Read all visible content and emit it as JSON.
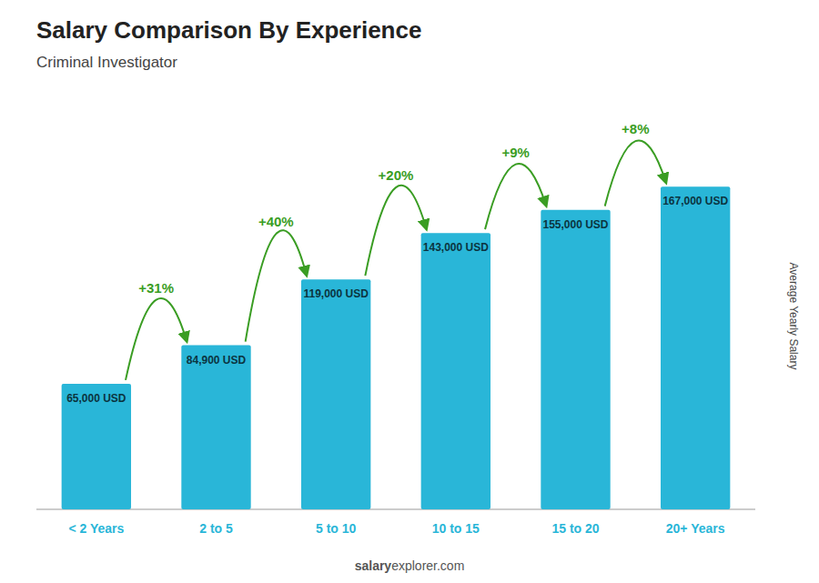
{
  "chart_data": {
    "type": "bar",
    "title": "Salary Comparison By Experience",
    "subtitle": "Criminal Investigator",
    "y_label": "Average Yearly Salary",
    "categories": [
      "< 2 Years",
      "2 to 5",
      "5 to 10",
      "10 to 15",
      "15 to 20",
      "20+ Years"
    ],
    "values": [
      65000,
      84900,
      119000,
      143000,
      155000,
      167000
    ],
    "value_labels": [
      "65,000 USD",
      "84,900 USD",
      "119,000 USD",
      "143,000 USD",
      "155,000 USD",
      "167,000 USD"
    ],
    "data_labels": true,
    "color": "#29B6D8",
    "ylim": [
      0,
      200000
    ],
    "tick_labels": "x",
    "grid": false,
    "annotations": [
      {
        "text": "+31%",
        "color": "#3a9d23"
      },
      {
        "text": "+40%",
        "color": "#3a9d23"
      },
      {
        "text": "+20%",
        "color": "#3a9d23"
      },
      {
        "text": "+9%",
        "color": "#3a9d23"
      },
      {
        "text": "+8%",
        "color": "#3a9d23"
      }
    ],
    "watermark": [
      "salary",
      "explorer.com"
    ]
  }
}
